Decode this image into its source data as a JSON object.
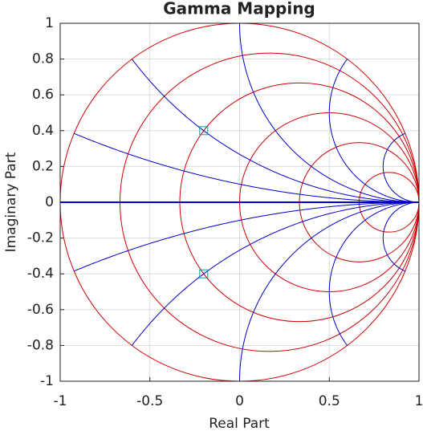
{
  "chart_data": {
    "type": "smith",
    "title": "Gamma Mapping",
    "xlabel": "Real Part",
    "ylabel": "Imaginary Part",
    "xlim": [
      -1,
      1
    ],
    "ylim": [
      -1,
      1
    ],
    "xticks": [
      -1,
      -0.5,
      0,
      0.5,
      1
    ],
    "yticks": [
      -1,
      -0.8,
      -0.6,
      -0.4,
      -0.2,
      0,
      0.2,
      0.4,
      0.6,
      0.8,
      1
    ],
    "grid": true,
    "resistances": [
      0,
      0.2,
      0.5,
      1,
      2,
      5
    ],
    "resistance_color": "#d00000",
    "reactances": [
      -5,
      -2,
      -1,
      -0.5,
      -0.2,
      0,
      0.2,
      0.5,
      1,
      2,
      5
    ],
    "reactance_color": "#0000c8",
    "markers": {
      "x": [
        -0.2,
        -0.2
      ],
      "y": [
        0.4,
        -0.4
      ],
      "color": "#00a0a0"
    }
  }
}
